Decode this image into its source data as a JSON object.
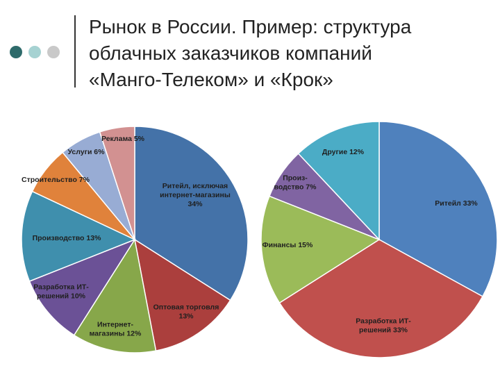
{
  "header": {
    "title_lines": [
      "Рынок в России. Пример: структура",
      "облачных заказчиков компаний",
      "«Манго-Телеком» и «Крок»"
    ],
    "dot_colors": [
      "#2e6b6b",
      "#a6d2d2",
      "#c9c9c9"
    ]
  },
  "chart_data": [
    {
      "type": "pie",
      "title": "",
      "slices": [
        {
          "label_lines": [
            "Ритейл, исключая",
            "интернет-магазины",
            "34%"
          ],
          "value": 34,
          "color": "#4472a8"
        },
        {
          "label_lines": [
            "Оптовая торговля",
            "13%"
          ],
          "value": 13,
          "color": "#ab3f3d"
        },
        {
          "label_lines": [
            "Интернет-",
            "магазины 12%"
          ],
          "value": 12,
          "color": "#87a74a"
        },
        {
          "label_lines": [
            "Разработка ИТ-",
            "решений 10%"
          ],
          "value": 10,
          "color": "#6b5196"
        },
        {
          "label_lines": [
            "Производство 13%"
          ],
          "value": 13,
          "color": "#3f8fad"
        },
        {
          "label_lines": [
            "Строительство 7%"
          ],
          "value": 7,
          "color": "#e0823b"
        },
        {
          "label_lines": [
            "Услуги 6%"
          ],
          "value": 6,
          "color": "#98acd4"
        },
        {
          "label_lines": [
            "Реклама 5%"
          ],
          "value": 5,
          "color": "#d29191"
        }
      ]
    },
    {
      "type": "pie",
      "title": "",
      "slices": [
        {
          "label_lines": [
            "Ритейл 33%"
          ],
          "value": 33,
          "color": "#4f81bd"
        },
        {
          "label_lines": [
            "Разработка ИТ-",
            "решений 33%"
          ],
          "value": 33,
          "color": "#c0504d"
        },
        {
          "label_lines": [
            "Финансы 15%"
          ],
          "value": 15,
          "color": "#9bbb59"
        },
        {
          "label_lines": [
            "Произ-",
            "водство 7%"
          ],
          "value": 7,
          "color": "#8064a2"
        },
        {
          "label_lines": [
            "Другие 12%"
          ],
          "value": 12,
          "color": "#4bacc6"
        }
      ]
    }
  ]
}
